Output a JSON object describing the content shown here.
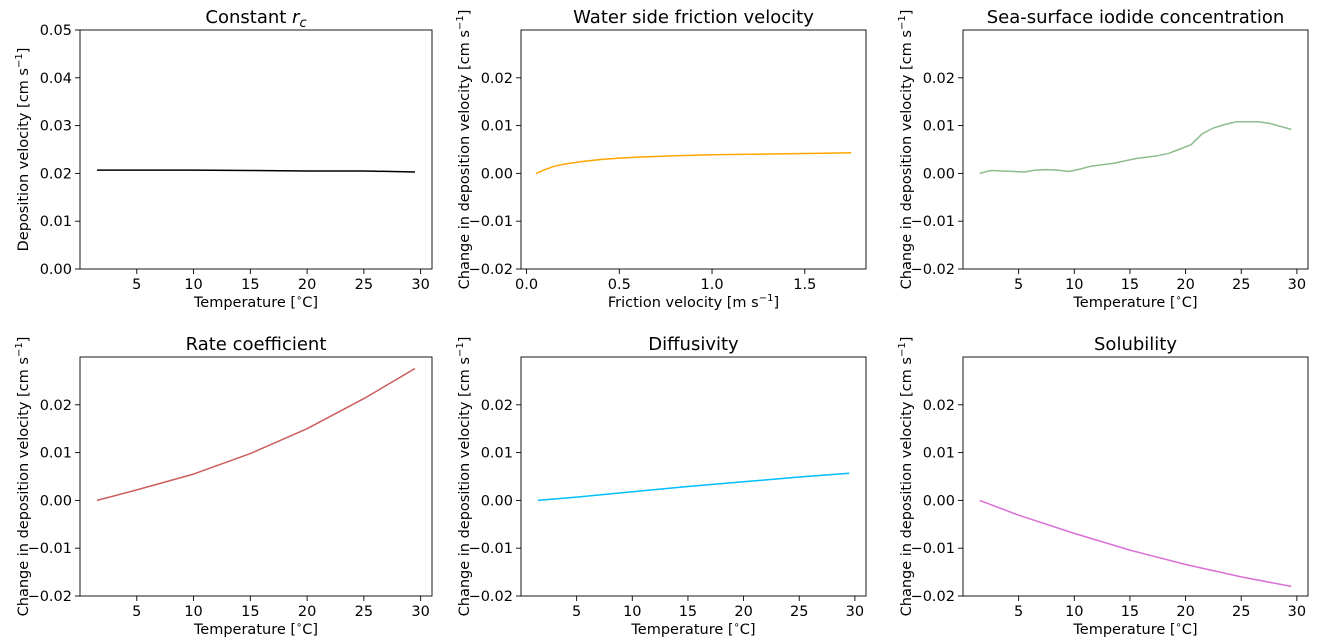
{
  "chart_data": [
    {
      "type": "line",
      "title": "Constant r",
      "title_sub": "c",
      "xlabel": "Temperature [$^\\circ$C]",
      "ylabel": "Deposition velocity [cm s$^{-1}$]",
      "xlim": [
        0,
        31
      ],
      "ylim": [
        0,
        0.05
      ],
      "xticks": [
        5,
        10,
        15,
        20,
        25,
        30
      ],
      "yticks": [
        0.0,
        0.01,
        0.02,
        0.03,
        0.04,
        0.05
      ],
      "ytick_labels": [
        "0.00",
        "0.01",
        "0.02",
        "0.03",
        "0.04",
        "0.05"
      ],
      "color": "#000000",
      "series": [
        {
          "x": [
            1.5,
            5,
            10,
            15,
            20,
            25,
            27.5,
            29.5
          ],
          "y": [
            0.0207,
            0.0207,
            0.0207,
            0.0206,
            0.0205,
            0.0205,
            0.0204,
            0.0203
          ]
        }
      ]
    },
    {
      "type": "line",
      "title": "Water side friction velocity",
      "xlabel": "Friction velocity [m s$^{-1}$]",
      "ylabel": "Change in deposition velocity [cm s$^{-1}$]",
      "xlim": [
        -0.03,
        1.83
      ],
      "ylim": [
        -0.02,
        0.03
      ],
      "xticks": [
        0.0,
        0.5,
        1.0,
        1.5
      ],
      "xtick_labels": [
        "0.0",
        "0.5",
        "1.0",
        "1.5"
      ],
      "yticks": [
        -0.02,
        -0.01,
        0.0,
        0.01,
        0.02
      ],
      "ytick_labels": [
        "−0.02",
        "−0.01",
        "0.00",
        "0.01",
        "0.02"
      ],
      "color": "#ffa500",
      "series": [
        {
          "x": [
            0.05,
            0.1,
            0.15,
            0.2,
            0.3,
            0.4,
            0.5,
            0.6,
            0.8,
            1.0,
            1.2,
            1.4,
            1.6,
            1.75
          ],
          "y": [
            0.0,
            0.0008,
            0.0015,
            0.0019,
            0.0025,
            0.0029,
            0.0032,
            0.0034,
            0.0037,
            0.0039,
            0.004,
            0.0041,
            0.0042,
            0.0043
          ]
        }
      ]
    },
    {
      "type": "line",
      "title": "Sea-surface iodide concentration",
      "xlabel": "Temperature [$^\\circ$C]",
      "ylabel": "Change in deposition velocity [cm s$^{-1}$]",
      "xlim": [
        0,
        31
      ],
      "ylim": [
        -0.02,
        0.03
      ],
      "xticks": [
        5,
        10,
        15,
        20,
        25,
        30
      ],
      "yticks": [
        -0.02,
        -0.01,
        0.0,
        0.01,
        0.02
      ],
      "ytick_labels": [
        "−0.02",
        "−0.01",
        "0.00",
        "0.01",
        "0.02"
      ],
      "color": "#8fbc8f",
      "series": [
        {
          "x": [
            1.5,
            2.5,
            3.5,
            5.5,
            6.5,
            7.5,
            8.5,
            9.5,
            10.5,
            11.5,
            12.5,
            13.5,
            14.5,
            15.5,
            16.5,
            17.5,
            18.5,
            19.5,
            20.5,
            21.5,
            22.5,
            23.5,
            24.5,
            25.5,
            26.5,
            27.5,
            29.5
          ],
          "y": [
            0.0,
            0.0006,
            0.0005,
            0.0003,
            0.0007,
            0.0008,
            0.0007,
            0.0004,
            0.0009,
            0.0015,
            0.0018,
            0.0021,
            0.0026,
            0.0031,
            0.0034,
            0.0037,
            0.0042,
            0.0051,
            0.006,
            0.0083,
            0.0095,
            0.0102,
            0.0108,
            0.0108,
            0.0108,
            0.0105,
            0.0092
          ]
        }
      ]
    },
    {
      "type": "line",
      "title": "Rate coefficient",
      "xlabel": "Temperature [$^\\circ$C]",
      "ylabel": "Change in deposition velocity [cm s$^{-1}$]",
      "xlim": [
        0,
        31
      ],
      "ylim": [
        -0.02,
        0.03
      ],
      "xticks": [
        5,
        10,
        15,
        20,
        25,
        30
      ],
      "yticks": [
        -0.02,
        -0.01,
        0.0,
        0.01,
        0.02
      ],
      "ytick_labels": [
        "−0.02",
        "−0.01",
        "0.00",
        "0.01",
        "0.02"
      ],
      "color": "#cd5c5c",
      "series": [
        {
          "x": [
            1.5,
            5,
            10,
            15,
            20,
            25,
            27.5,
            29.5
          ],
          "y": [
            0.0,
            0.0022,
            0.0055,
            0.0098,
            0.015,
            0.0213,
            0.0248,
            0.0276
          ]
        }
      ]
    },
    {
      "type": "line",
      "title": "Diffusivity",
      "xlabel": "Temperature [$^\\circ$C]",
      "ylabel": "Change in deposition velocity [cm s$^{-1}$]",
      "xlim": [
        0,
        31
      ],
      "ylim": [
        -0.02,
        0.03
      ],
      "xticks": [
        5,
        10,
        15,
        20,
        25,
        30
      ],
      "yticks": [
        -0.02,
        -0.01,
        0.0,
        0.01,
        0.02
      ],
      "ytick_labels": [
        "−0.02",
        "−0.01",
        "0.00",
        "0.01",
        "0.02"
      ],
      "color": "#00bfff",
      "series": [
        {
          "x": [
            1.5,
            5,
            10,
            15,
            20,
            25,
            29.5
          ],
          "y": [
            0.0,
            0.0007,
            0.0018,
            0.0029,
            0.0039,
            0.0049,
            0.0057
          ]
        }
      ]
    },
    {
      "type": "line",
      "title": "Solubility",
      "xlabel": "Temperature [$^\\circ$C]",
      "ylabel": "Change in deposition velocity [cm s$^{-1}$]",
      "xlim": [
        0,
        31
      ],
      "ylim": [
        -0.02,
        0.03
      ],
      "xticks": [
        5,
        10,
        15,
        20,
        25,
        30
      ],
      "yticks": [
        -0.02,
        -0.01,
        0.0,
        0.01,
        0.02
      ],
      "ytick_labels": [
        "−0.02",
        "−0.01",
        "0.00",
        "0.01",
        "0.02"
      ],
      "color": "#da70d6",
      "series": [
        {
          "x": [
            1.5,
            5,
            10,
            15,
            20,
            25,
            29.5
          ],
          "y": [
            0.0,
            -0.0031,
            -0.0069,
            -0.0104,
            -0.0134,
            -0.016,
            -0.018
          ]
        }
      ]
    }
  ]
}
